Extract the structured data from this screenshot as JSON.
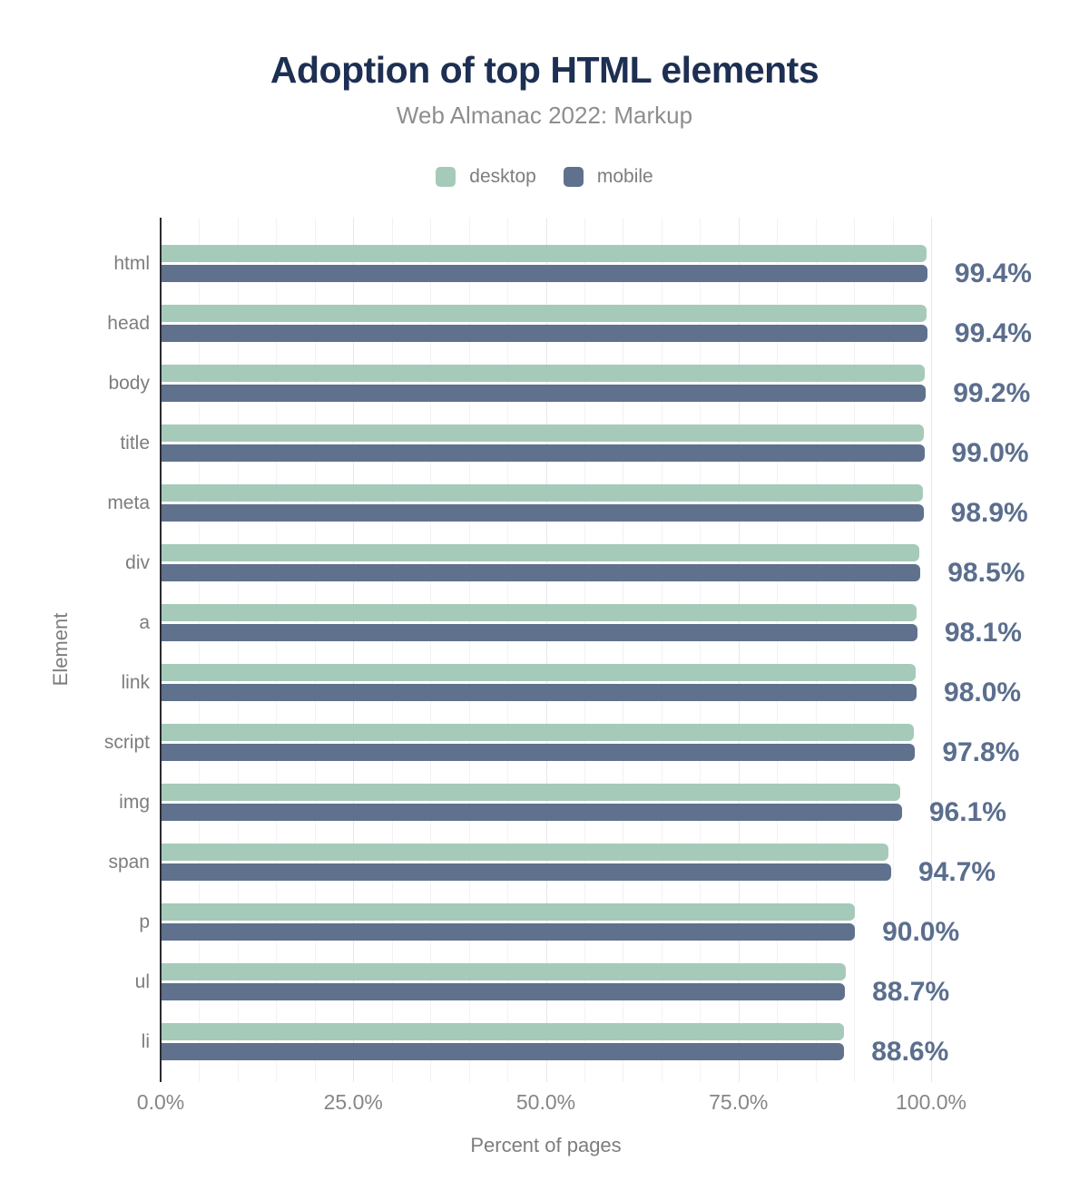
{
  "chart_data": {
    "type": "bar",
    "orientation": "horizontal",
    "title": "Adoption of top HTML elements",
    "subtitle": "Web Almanac 2022: Markup",
    "xlabel": "Percent of pages",
    "ylabel": "Element",
    "xlim": [
      0,
      100
    ],
    "x_ticks": [
      {
        "label": "0.0%",
        "value": 0
      },
      {
        "label": "25.0%",
        "value": 25
      },
      {
        "label": "50.0%",
        "value": 50
      },
      {
        "label": "75.0%",
        "value": 75
      },
      {
        "label": "100.0%",
        "value": 100
      }
    ],
    "grid": true,
    "grid_minor_step_pct": 5,
    "grid_major_step_pct": 25,
    "legend_position": "top",
    "categories": [
      "html",
      "head",
      "body",
      "title",
      "meta",
      "div",
      "a",
      "link",
      "script",
      "img",
      "span",
      "p",
      "ul",
      "li"
    ],
    "series": [
      {
        "name": "desktop",
        "color": "#a6cab9",
        "values": [
          99.3,
          99.3,
          99.1,
          98.9,
          98.8,
          98.4,
          98.0,
          97.9,
          97.7,
          95.9,
          94.3,
          90.0,
          88.8,
          88.6
        ]
      },
      {
        "name": "mobile",
        "color": "#5f718c",
        "values": [
          99.4,
          99.4,
          99.2,
          99.0,
          98.9,
          98.5,
          98.1,
          98.0,
          97.8,
          96.1,
          94.7,
          90.0,
          88.7,
          88.6
        ]
      }
    ],
    "value_labels": [
      "99.4%",
      "99.4%",
      "99.2%",
      "99.0%",
      "98.9%",
      "98.5%",
      "98.1%",
      "98.0%",
      "97.8%",
      "96.1%",
      "94.7%",
      "90.0%",
      "88.7%",
      "88.6%"
    ],
    "value_label_series": "mobile"
  },
  "colors": {
    "title_text": "#1d2f52",
    "subtitle_text": "#8e8e8e",
    "axis_text": "#7d7d7d",
    "value_label_text": "#5b6e8e",
    "axis_line": "#2b2b31",
    "desktop": "#a6cab9",
    "mobile": "#5f718c"
  }
}
